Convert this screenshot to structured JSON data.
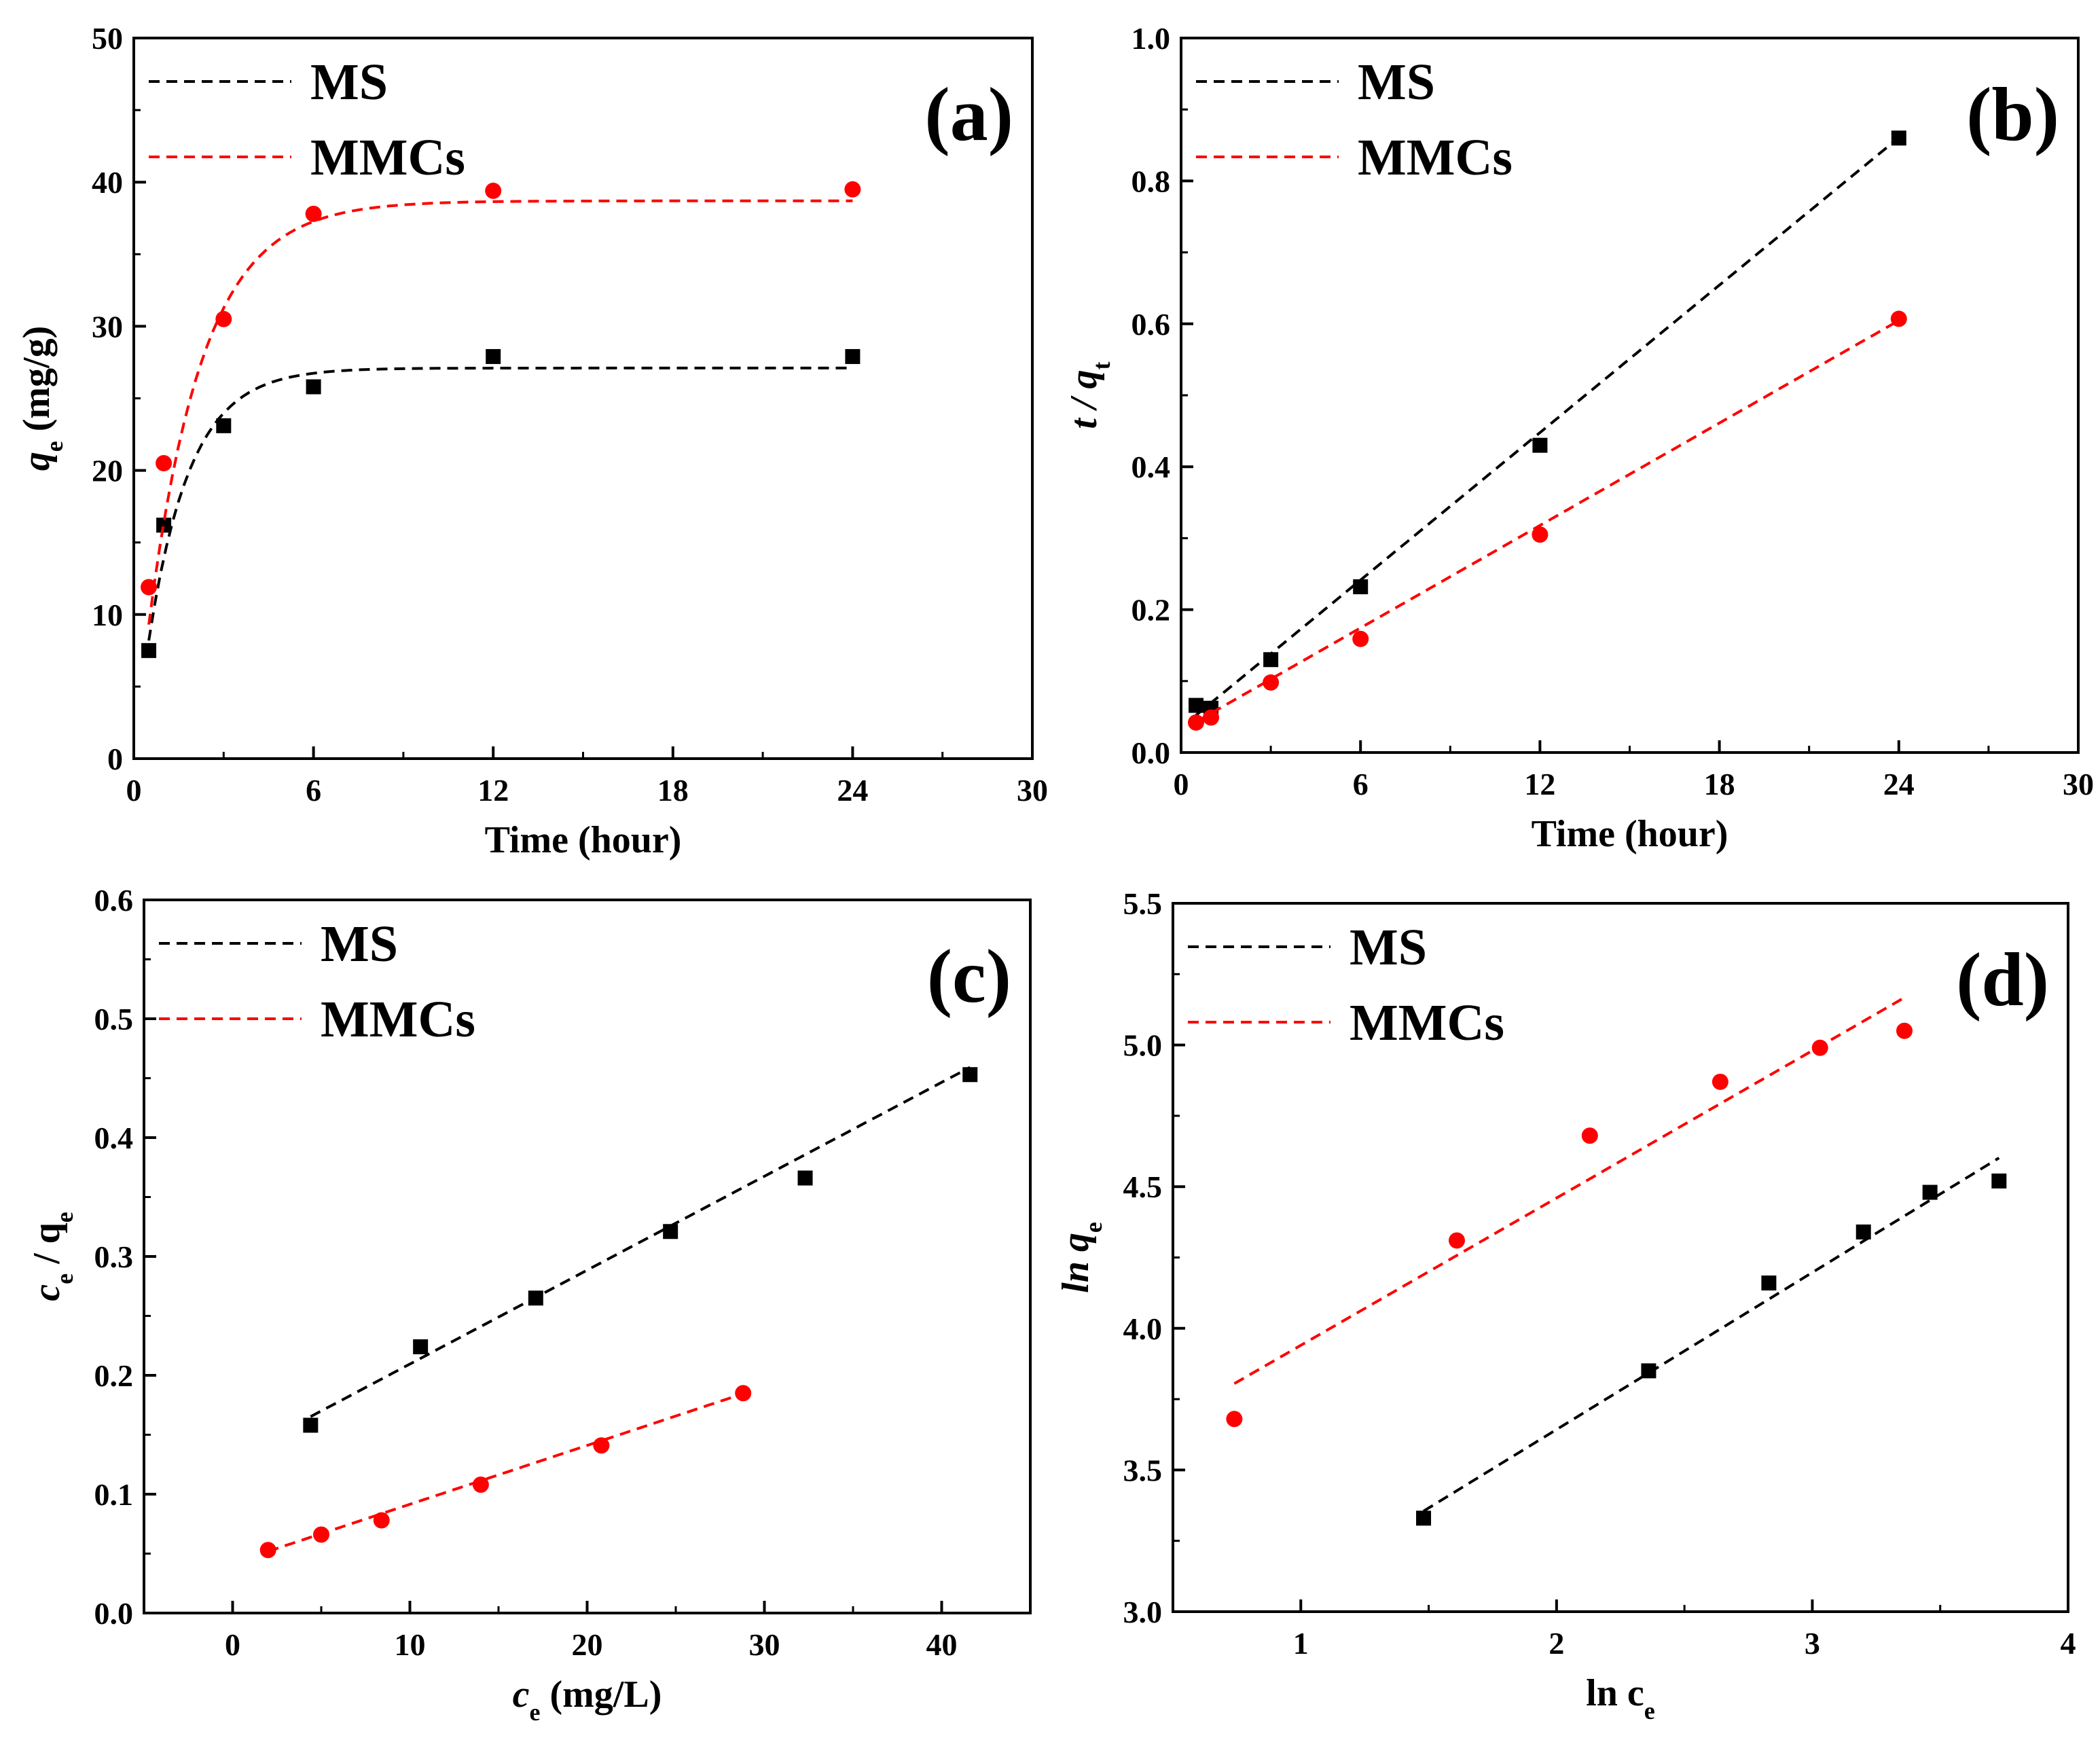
{
  "colors": {
    "MS": "#000000",
    "MMCs": "#ff0000"
  },
  "chart_data": [
    {
      "panel": "(a)",
      "type": "scatter",
      "xlabel": "Time (hour)",
      "ylabel": {
        "main": "q",
        "sub": "e",
        "rest": " (mg/g)",
        "order": [
          "main",
          "sub",
          "rest"
        ]
      },
      "xlim": [
        0,
        30
      ],
      "ylim": [
        0,
        50
      ],
      "xticks": [
        0,
        6,
        12,
        18,
        24,
        30
      ],
      "yticks": [
        0,
        10,
        20,
        30,
        40,
        50
      ],
      "legend_position": "top-left",
      "series": [
        {
          "name": "MS",
          "marker": "square",
          "points": [
            [
              0.5,
              7.5
            ],
            [
              1,
              16.2
            ],
            [
              3,
              23.1
            ],
            [
              6,
              25.8
            ],
            [
              12,
              27.9
            ],
            [
              24,
              27.9
            ]
          ],
          "fit": {
            "kind": "exp",
            "qmax": 27.1,
            "k": 0.72,
            "x_range": [
              0.5,
              24
            ]
          }
        },
        {
          "name": "MMCs",
          "marker": "circle",
          "points": [
            [
              0.5,
              11.9
            ],
            [
              1,
              20.5
            ],
            [
              3,
              30.5
            ],
            [
              6,
              37.8
            ],
            [
              12,
              39.4
            ],
            [
              24,
              39.5
            ]
          ],
          "fit": {
            "kind": "exp",
            "qmax": 38.7,
            "k": 0.55,
            "x_range": [
              0.5,
              24
            ]
          }
        }
      ]
    },
    {
      "panel": "(b)",
      "type": "scatter",
      "xlabel": "Time (hour)",
      "ylabel": {
        "main": "t / q",
        "sub": "t",
        "order": [
          "main",
          "sub"
        ]
      },
      "xlim": [
        0,
        30
      ],
      "ylim": [
        0,
        1.0
      ],
      "xticks": [
        0,
        6,
        12,
        18,
        24,
        30
      ],
      "yticks": [
        0.0,
        0.2,
        0.4,
        0.6,
        0.8,
        1.0
      ],
      "legend_position": "top-left",
      "series": [
        {
          "name": "MS",
          "marker": "square",
          "points": [
            [
              0.5,
              0.066
            ],
            [
              1,
              0.062
            ],
            [
              3,
              0.13
            ],
            [
              6,
              0.232
            ],
            [
              12,
              0.43
            ],
            [
              24,
              0.86
            ]
          ],
          "fit": {
            "kind": "linear",
            "slope": 0.0344,
            "intercept": 0.035,
            "x_range": [
              0.5,
              24
            ]
          }
        },
        {
          "name": "MMCs",
          "marker": "circle",
          "points": [
            [
              0.5,
              0.042
            ],
            [
              1,
              0.049
            ],
            [
              3,
              0.098
            ],
            [
              6,
              0.159
            ],
            [
              12,
              0.305
            ],
            [
              24,
              0.607
            ]
          ],
          "fit": {
            "kind": "linear",
            "slope": 0.0239,
            "intercept": 0.031,
            "x_range": [
              0.5,
              24
            ]
          }
        }
      ]
    },
    {
      "panel": "(c)",
      "type": "scatter",
      "xlabel": {
        "main": "c",
        "sub": "e",
        "rest": " (mg/L)",
        "order": [
          "main",
          "sub",
          "rest"
        ]
      },
      "ylabel": {
        "main": "c",
        "sub": "e",
        "rest": " / q",
        "sub2": "e",
        "order": [
          "main",
          "sub",
          "rest",
          "sub2"
        ]
      },
      "xlim": [
        -5,
        45
      ],
      "ylim": [
        0,
        0.6
      ],
      "xticks": [
        0,
        10,
        20,
        30,
        40
      ],
      "yticks": [
        0.0,
        0.1,
        0.2,
        0.3,
        0.4,
        0.5,
        0.6
      ],
      "legend_position": "top-left",
      "series": [
        {
          "name": "MS",
          "marker": "square",
          "points": [
            [
              4.4,
              0.158
            ],
            [
              10.6,
              0.224
            ],
            [
              17.1,
              0.265
            ],
            [
              24.7,
              0.321
            ],
            [
              32.3,
              0.366
            ],
            [
              41.6,
              0.453
            ]
          ],
          "fit": {
            "kind": "linear",
            "slope": 0.0079,
            "intercept": 0.1305,
            "x_range": [
              4.4,
              41.6
            ]
          }
        },
        {
          "name": "MMCs",
          "marker": "circle",
          "points": [
            [
              2.0,
              0.053
            ],
            [
              5.0,
              0.066
            ],
            [
              8.4,
              0.078
            ],
            [
              14.0,
              0.108
            ],
            [
              20.8,
              0.141
            ],
            [
              28.8,
              0.185
            ]
          ],
          "fit": {
            "kind": "linear",
            "slope": 0.00495,
            "intercept": 0.042,
            "x_range": [
              2.0,
              28.8
            ]
          }
        }
      ]
    },
    {
      "panel": "(d)",
      "type": "scatter",
      "xlabel": {
        "main": "ln c",
        "sub": "e",
        "order": [
          "main",
          "sub"
        ]
      },
      "ylabel": {
        "main": "ln q",
        "sub": "e",
        "order": [
          "main",
          "sub"
        ]
      },
      "xlim": [
        0.5,
        4.0
      ],
      "ylim": [
        3.0,
        5.5
      ],
      "xticks": [
        1,
        2,
        3,
        4
      ],
      "yticks": [
        3.0,
        3.5,
        4.0,
        4.5,
        5.0,
        5.5
      ],
      "legend_position": "top-left",
      "series": [
        {
          "name": "MS",
          "marker": "square",
          "points": [
            [
              1.48,
              3.33
            ],
            [
              2.36,
              3.85
            ],
            [
              2.83,
              4.16
            ],
            [
              3.2,
              4.34
            ],
            [
              3.46,
              4.48
            ],
            [
              3.73,
              4.52
            ]
          ],
          "fit": {
            "kind": "linear",
            "slope": 0.554,
            "intercept": 2.535,
            "x_range": [
              1.48,
              3.73
            ]
          }
        },
        {
          "name": "MMCs",
          "marker": "circle",
          "points": [
            [
              0.74,
              3.68
            ],
            [
              1.61,
              4.31
            ],
            [
              2.13,
              4.68
            ],
            [
              2.64,
              4.87
            ],
            [
              3.03,
              4.99
            ],
            [
              3.36,
              5.05
            ]
          ],
          "fit": {
            "kind": "linear",
            "slope": 0.52,
            "intercept": 3.42,
            "x_range": [
              0.74,
              3.36
            ]
          }
        }
      ]
    }
  ]
}
